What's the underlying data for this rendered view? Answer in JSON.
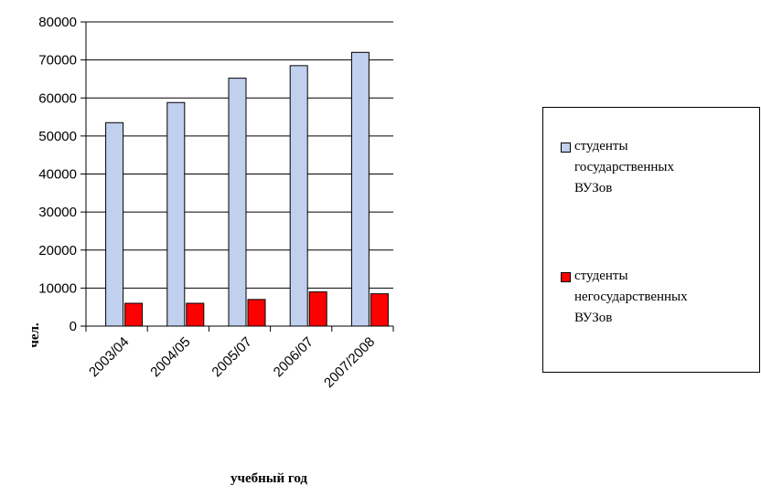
{
  "chart_data": {
    "type": "bar",
    "categories": [
      "2003/04",
      "2004/05",
      "2005/07",
      "2006/07",
      "2007/2008"
    ],
    "series": [
      {
        "name": "студенты государственных ВУЗов",
        "legend_lines": [
          "студенты",
          "государственных",
          "ВУЗов"
        ],
        "values": [
          53500,
          58800,
          65200,
          68500,
          72000
        ],
        "color": "#c0d0ee"
      },
      {
        "name": "студенты негосударственных ВУЗов",
        "legend_lines": [
          "студенты",
          "негосударственных",
          "ВУЗов"
        ],
        "values": [
          6000,
          6000,
          7000,
          9000,
          8500
        ],
        "color": "#ff0000"
      }
    ],
    "xlabel": "учебный год",
    "ylabel": "чел.",
    "ylim": [
      0,
      80000
    ],
    "yticks": [
      0,
      10000,
      20000,
      30000,
      40000,
      50000,
      60000,
      70000,
      80000
    ],
    "grid": true,
    "legend_position": "right"
  }
}
